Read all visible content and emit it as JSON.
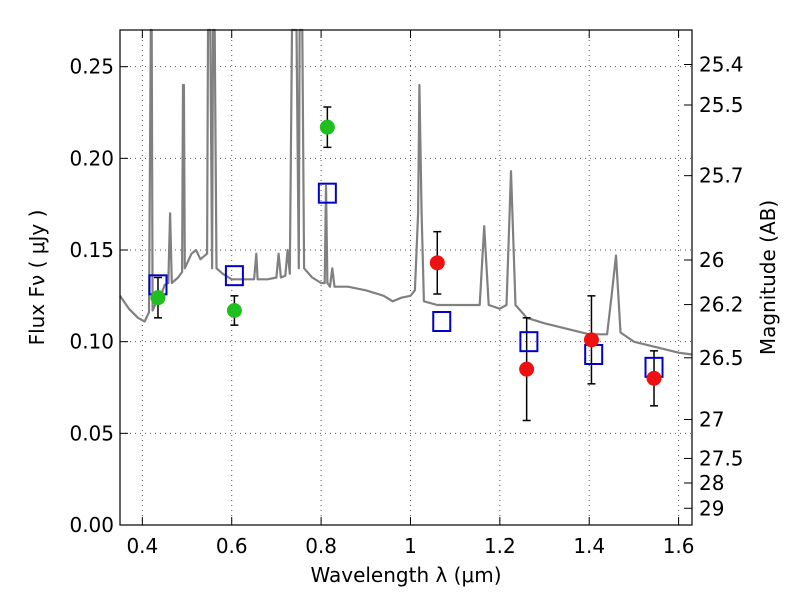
{
  "chart_data": {
    "type": "scatter",
    "title": "",
    "xlabel": "Wavelength  λ (μm)",
    "ylabel": "Flux  Fν  ( μJy )",
    "y2label": "Magnitude (AB)",
    "xlim": [
      0.35,
      1.63
    ],
    "ylim": [
      0.0,
      0.27
    ],
    "xticks": [
      0.4,
      0.6,
      0.8,
      1.0,
      1.2,
      1.4,
      1.6
    ],
    "xtick_labels": [
      "0.4",
      "0.6",
      "0.8",
      "1",
      "1.2",
      "1.4",
      "1.6"
    ],
    "yticks": [
      0.0,
      0.05,
      0.1,
      0.15,
      0.2,
      0.25
    ],
    "ytick_labels": [
      "0.00",
      "0.05",
      "0.10",
      "0.15",
      "0.20",
      "0.25"
    ],
    "y2ticks": [
      {
        "label": "25.4",
        "mag": 25.4
      },
      {
        "label": "25.5",
        "mag": 25.5
      },
      {
        "label": "25.7",
        "mag": 25.7
      },
      {
        "label": "26",
        "mag": 26.0
      },
      {
        "label": "26.2",
        "mag": 26.2
      },
      {
        "label": "26.5",
        "mag": 26.5
      },
      {
        "label": "27",
        "mag": 27.0
      },
      {
        "label": "27.5",
        "mag": 27.5
      },
      {
        "label": "28",
        "mag": 28.0
      },
      {
        "label": "29",
        "mag": 29.0
      }
    ],
    "grid": true,
    "colors": {
      "spectrum": "#808080",
      "green": "#1fbf1f",
      "red": "#ee1111",
      "model": "#0000cc",
      "errorbar": "#000000"
    },
    "series": [
      {
        "name": "SED model spectrum",
        "kind": "line",
        "points": [
          [
            0.35,
            0.125
          ],
          [
            0.37,
            0.118
          ],
          [
            0.39,
            0.113
          ],
          [
            0.405,
            0.111
          ],
          [
            0.415,
            0.116
          ],
          [
            0.419,
            0.27
          ],
          [
            0.421,
            0.27
          ],
          [
            0.423,
            0.117
          ],
          [
            0.43,
            0.121
          ],
          [
            0.44,
            0.124
          ],
          [
            0.45,
            0.131
          ],
          [
            0.458,
            0.132
          ],
          [
            0.462,
            0.17
          ],
          [
            0.466,
            0.132
          ],
          [
            0.48,
            0.135
          ],
          [
            0.489,
            0.138
          ],
          [
            0.491,
            0.24
          ],
          [
            0.493,
            0.24
          ],
          [
            0.495,
            0.14
          ],
          [
            0.51,
            0.148
          ],
          [
            0.52,
            0.15
          ],
          [
            0.53,
            0.145
          ],
          [
            0.545,
            0.148
          ],
          [
            0.547,
            0.27
          ],
          [
            0.552,
            0.27
          ],
          [
            0.556,
            0.14
          ],
          [
            0.558,
            0.27
          ],
          [
            0.562,
            0.27
          ],
          [
            0.566,
            0.14
          ],
          [
            0.58,
            0.137
          ],
          [
            0.6,
            0.134
          ],
          [
            0.63,
            0.134
          ],
          [
            0.65,
            0.134
          ],
          [
            0.655,
            0.148
          ],
          [
            0.658,
            0.134
          ],
          [
            0.68,
            0.134
          ],
          [
            0.7,
            0.135
          ],
          [
            0.705,
            0.148
          ],
          [
            0.71,
            0.135
          ],
          [
            0.72,
            0.136
          ],
          [
            0.725,
            0.15
          ],
          [
            0.73,
            0.137
          ],
          [
            0.735,
            0.27
          ],
          [
            0.745,
            0.27
          ],
          [
            0.75,
            0.14
          ],
          [
            0.752,
            0.27
          ],
          [
            0.758,
            0.27
          ],
          [
            0.762,
            0.14
          ],
          [
            0.78,
            0.135
          ],
          [
            0.8,
            0.132
          ],
          [
            0.808,
            0.132
          ],
          [
            0.811,
            0.185
          ],
          [
            0.814,
            0.132
          ],
          [
            0.82,
            0.13
          ],
          [
            0.825,
            0.14
          ],
          [
            0.83,
            0.13
          ],
          [
            0.86,
            0.13
          ],
          [
            0.9,
            0.128
          ],
          [
            0.94,
            0.125
          ],
          [
            0.96,
            0.122
          ],
          [
            0.98,
            0.124
          ],
          [
            1.0,
            0.125
          ],
          [
            1.01,
            0.128
          ],
          [
            1.017,
            0.17
          ],
          [
            1.02,
            0.24
          ],
          [
            1.025,
            0.17
          ],
          [
            1.03,
            0.122
          ],
          [
            1.06,
            0.12
          ],
          [
            1.1,
            0.12
          ],
          [
            1.14,
            0.12
          ],
          [
            1.155,
            0.12
          ],
          [
            1.165,
            0.163
          ],
          [
            1.175,
            0.12
          ],
          [
            1.2,
            0.118
          ],
          [
            1.215,
            0.12
          ],
          [
            1.225,
            0.193
          ],
          [
            1.235,
            0.12
          ],
          [
            1.26,
            0.113
          ],
          [
            1.3,
            0.11
          ],
          [
            1.35,
            0.107
          ],
          [
            1.4,
            0.104
          ],
          [
            1.44,
            0.104
          ],
          [
            1.45,
            0.125
          ],
          [
            1.46,
            0.147
          ],
          [
            1.47,
            0.105
          ],
          [
            1.5,
            0.1
          ],
          [
            1.55,
            0.097
          ],
          [
            1.6,
            0.094
          ],
          [
            1.63,
            0.093
          ]
        ]
      },
      {
        "name": "Observed flux (green)",
        "kind": "points",
        "points": [
          {
            "x": 0.435,
            "y": 0.124,
            "err": 0.011
          },
          {
            "x": 0.606,
            "y": 0.117,
            "err": 0.008
          },
          {
            "x": 0.814,
            "y": 0.217,
            "err": 0.011
          }
        ]
      },
      {
        "name": "Observed flux (red)",
        "kind": "points",
        "points": [
          {
            "x": 1.06,
            "y": 0.143,
            "err": 0.017
          },
          {
            "x": 1.26,
            "y": 0.085,
            "err": 0.028
          },
          {
            "x": 1.405,
            "y": 0.101,
            "err": 0.024
          },
          {
            "x": 1.545,
            "y": 0.08,
            "err": 0.015
          }
        ]
      },
      {
        "name": "Model band flux",
        "kind": "squares",
        "points": [
          {
            "x": 0.435,
            "y": 0.131
          },
          {
            "x": 0.606,
            "y": 0.136
          },
          {
            "x": 0.814,
            "y": 0.181
          },
          {
            "x": 1.07,
            "y": 0.111
          },
          {
            "x": 1.265,
            "y": 0.1
          },
          {
            "x": 1.41,
            "y": 0.093
          },
          {
            "x": 1.545,
            "y": 0.086
          }
        ]
      }
    ]
  }
}
